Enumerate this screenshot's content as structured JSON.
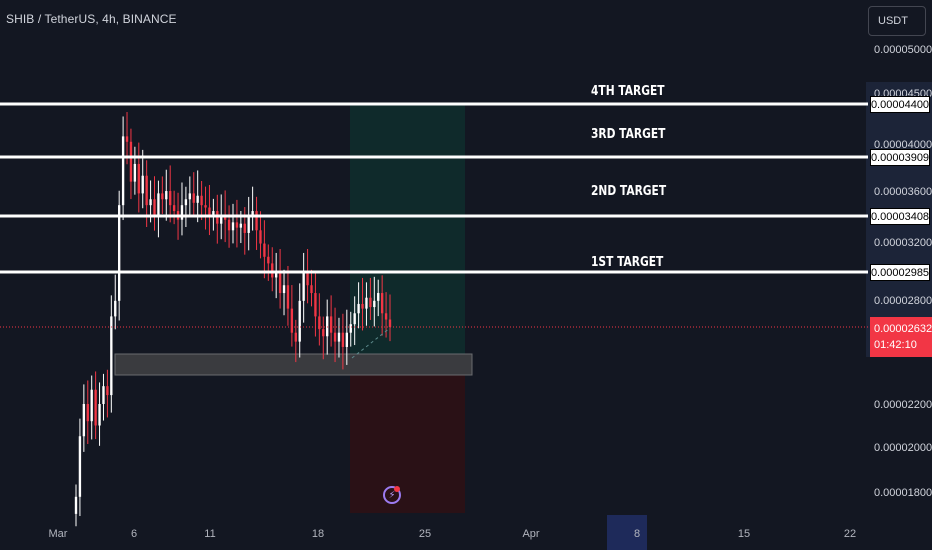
{
  "header": {
    "symbol": "SHIB / TetherUS, 4h, BINANCE",
    "currency": "USDT"
  },
  "colors": {
    "background": "#131722",
    "up": "#ffffff",
    "down": "#f23645",
    "zone": "#3a3b3f",
    "target_zone": "#0f2a2b",
    "stop_zone": "#2a1116"
  },
  "axis": {
    "price_labels": [
      "0.00005000",
      "0.00004500",
      "0.00004000",
      "0.00003600",
      "0.00003200",
      "0.00002800",
      "0.00002200",
      "0.00002000",
      "0.00001800"
    ],
    "date_labels": [
      "Mar",
      "6",
      "11",
      "18",
      "25",
      "Apr",
      "8",
      "15",
      "22"
    ],
    "highlighted_date": "8"
  },
  "targets": [
    {
      "label": "4TH TARGET",
      "price_label": "0.00004400"
    },
    {
      "label": "3RD TARGET",
      "price_label": "0.00003909"
    },
    {
      "label": "2ND TARGET",
      "price_label": "0.00003408"
    },
    {
      "label": "1ST TARGET",
      "price_label": "0.00002985"
    }
  ],
  "current": {
    "price": "0.00002632",
    "countdown": "01:42:10"
  },
  "chart_data": {
    "type": "candlestick",
    "interval": "4h",
    "x_start": "Mar 1",
    "levels": [
      4.4e-05,
      3.909e-05,
      3.408e-05,
      2.985e-05
    ],
    "current_price": 2.632e-05,
    "support_zone": [
      2.48e-05,
      2.6e-05
    ],
    "position": {
      "entry": 2.6e-05,
      "target": 4.4e-05,
      "stop": 1.7e-05
    },
    "closes": [
      1.78e-05,
      2.05e-05,
      2.2e-05,
      2.12e-05,
      2.28e-05,
      2.1e-05,
      2.2e-05,
      2.3e-05,
      2.25e-05,
      2.7e-05,
      2.8e-05,
      3.5e-05,
      4.1e-05,
      4.05e-05,
      3.7e-05,
      3.85e-05,
      3.6e-05,
      3.75e-05,
      3.5e-05,
      3.55e-05,
      3.4e-05,
      3.6e-05,
      3.55e-05,
      3.62e-05,
      3.5e-05,
      3.45e-05,
      3.38e-05,
      3.5e-05,
      3.55e-05,
      3.6e-05,
      3.52e-05,
      3.58e-05,
      3.5e-05,
      3.48e-05,
      3.4e-05,
      3.45e-05,
      3.35e-05,
      3.42e-05,
      3.38e-05,
      3.3e-05,
      3.36e-05,
      3.32e-05,
      3.35e-05,
      3.28e-05,
      3.4e-05,
      3.45e-05,
      3.3e-05,
      3.2e-05,
      3.1e-05,
      3.05e-05,
      2.95e-05,
      2.98e-05,
      2.85e-05,
      2.9e-05,
      2.75e-05,
      2.6e-05,
      2.55e-05,
      2.8e-05,
      2.98e-05,
      2.9e-05,
      2.85e-05,
      2.7e-05,
      2.62e-05,
      2.58e-05,
      2.7e-05,
      2.6e-05,
      2.55e-05,
      2.6e-05,
      2.52e-05,
      2.6e-05,
      2.65e-05,
      2.72e-05,
      2.78e-05,
      2.75e-05,
      2.82e-05,
      2.76e-05,
      2.8e-05,
      2.85e-05,
      2.72e-05,
      2.68e-05,
      2.632e-05
    ]
  }
}
